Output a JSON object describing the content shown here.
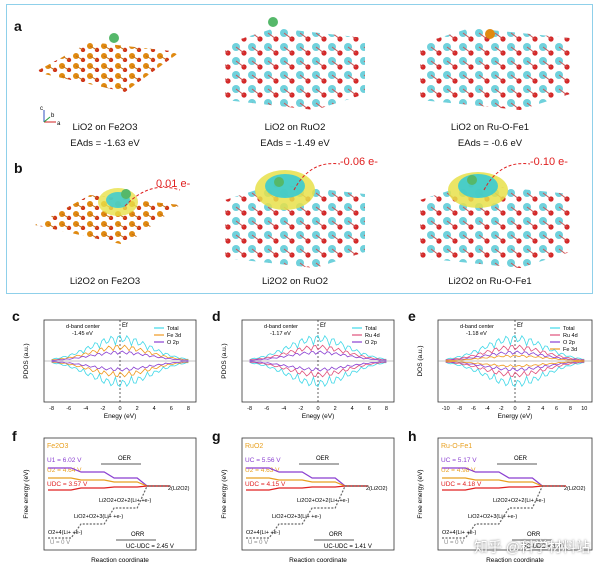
{
  "panel_a": {
    "label": "a",
    "items": [
      {
        "name": "LiO2 on Fe2O3",
        "energy": "EAds = -1.63 eV"
      },
      {
        "name": "LiO2 on RuO2",
        "energy": "EAds = -1.49 eV"
      },
      {
        "name": "LiO2 on Ru-O-Fe1",
        "energy": "EAds = -0.6 eV"
      }
    ]
  },
  "panel_b": {
    "label": "b",
    "items": [
      {
        "name": "Li2O2 on Fe2O3",
        "charge": "0.01 e-"
      },
      {
        "name": "Li2O2 on RuO2",
        "charge": "-0.06 e-"
      },
      {
        "name": "Li2O2 on Ru-O-Fe1",
        "charge": "-0.10 e-"
      }
    ]
  },
  "axes_icon": {
    "z": "c",
    "x": "a",
    "y": "b"
  },
  "dos_panels": [
    {
      "label": "c",
      "ylabel": "PDOS (a.u.)",
      "xlabel": "Enegy (eV)",
      "dband": "d-band center",
      "dband_value": "-1.45 eV",
      "ef": "Ef",
      "legend": [
        "Total",
        "Fe 3d",
        "O 2p"
      ],
      "xticks": [
        "-8",
        "-6",
        "-4",
        "-2",
        "0",
        "2",
        "4",
        "6",
        "8"
      ]
    },
    {
      "label": "d",
      "ylabel": "PDOS (a.u.)",
      "xlabel": "Enegy (eV)",
      "dband": "d-band center",
      "dband_value": "-1.17 eV",
      "ef": "Ef",
      "legend": [
        "Total",
        "Ru 4d",
        "O 2p"
      ],
      "xticks": [
        "-8",
        "-6",
        "-4",
        "-2",
        "0",
        "2",
        "4",
        "6",
        "8"
      ]
    },
    {
      "label": "e",
      "ylabel": "DOS (a.u.)",
      "xlabel": "Energy (eV)",
      "dband": "d-band center",
      "dband_value": "-1.18 eV",
      "ef": "Ef",
      "legend": [
        "Total",
        "Ru 4d",
        "O 2p",
        "Fe 3d"
      ],
      "xticks": [
        "-10",
        "-8",
        "-6",
        "-4",
        "-2",
        "0",
        "2",
        "4",
        "6",
        "8",
        "10"
      ]
    }
  ],
  "energy_panels": [
    {
      "label": "f",
      "material": "Fe2O3",
      "u1": "U1 = 6.02 V",
      "u2": "U2 = 4.64 V",
      "u3": "UDC = 3.57 V",
      "oer": "OER",
      "orr": "ORR",
      "gap": "UC-UDC = 2.45 V",
      "u0": "U = 0 V",
      "ylabel": "Free energy (eV)",
      "xlabel": "Reaction coordinate",
      "species": [
        "2(Li2O2)",
        "Li2O2+O2+2(Li+ +e-)",
        "LiO2+O2+3(Li+ +e-)",
        "O2+4(Li+ +e-)"
      ]
    },
    {
      "label": "g",
      "material": "RuO2",
      "u1": "UC = 5.56 V",
      "u2": "U2 = 4.63 V",
      "u3": "UDC = 4.15 V",
      "oer": "OER",
      "orr": "ORR",
      "gap": "UC-UDC = 1.41 V",
      "u0": "U = 0 V",
      "ylabel": "Free energy (eV)",
      "xlabel": "Reaction coordinate",
      "species": [
        "2(Li2O2)",
        "Li2O2+O2+2(Li+ +e-)",
        "LiO2+O2+3(Li+ +e-)",
        "O2+4(Li+ +e-)"
      ]
    },
    {
      "label": "h",
      "material": "Ru-O-Fe1",
      "u1": "UC = 5.17 V",
      "u2": "U2 = 4.98 V",
      "u3": "UDC = 4.18 V",
      "oer": "OER",
      "orr": "ORR",
      "gap": "UC-UDC = 1.0 V",
      "u0": "U = 0 V",
      "ylabel": "Free energy (eV)",
      "xlabel": "Reaction coordinate",
      "species": [
        "2(Li2O2)",
        "Li2O2+O2+2(Li+ +e-)",
        "LiO2+O2+3(Li+ +e-)",
        "O2+4(Li+ +e-)"
      ]
    }
  ],
  "watermark": "知乎 @科学材料站",
  "colors": {
    "frame": "#8fd0ea",
    "total": "#40d8e8",
    "metal": "#e0507a",
    "o2p": "#8a3fd1",
    "fe3d": "#f09a20",
    "u_purple": "#8a3fd1",
    "u_orange": "#e8a020",
    "u_red": "#e02020"
  }
}
